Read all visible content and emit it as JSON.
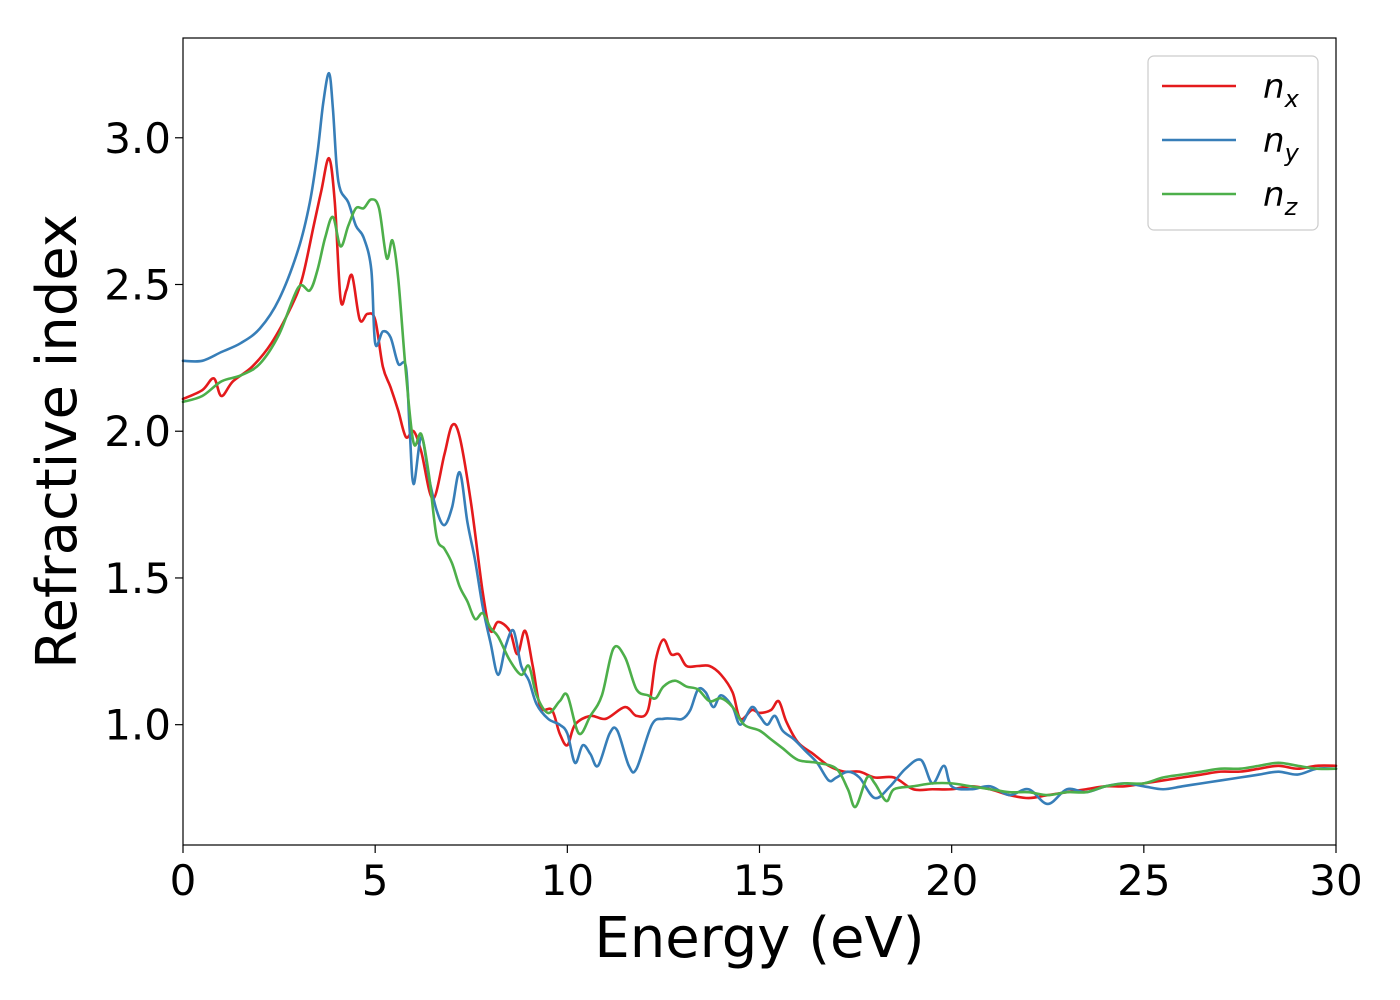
{
  "chart_data": {
    "type": "line",
    "xlabel": "Energy (eV)",
    "ylabel": "Refractive index",
    "xlim": [
      0,
      30
    ],
    "ylim": [
      0.59,
      3.34
    ],
    "xticks": [
      0,
      5,
      10,
      15,
      20,
      25,
      30
    ],
    "xtick_labels": [
      "0",
      "5",
      "10",
      "15",
      "20",
      "25",
      "30"
    ],
    "yticks": [
      1.0,
      1.5,
      2.0,
      2.5,
      3.0
    ],
    "ytick_labels": [
      "1.0",
      "1.5",
      "2.0",
      "2.5",
      "3.0"
    ],
    "grid": false,
    "legend_position": "top-right",
    "series": [
      {
        "name": "x",
        "legend_base": "n",
        "legend_sub": "x",
        "color": "#e41a1c",
        "points": [
          [
            0,
            2.11
          ],
          [
            0.5,
            2.14
          ],
          [
            0.8,
            2.18
          ],
          [
            1.0,
            2.12
          ],
          [
            1.3,
            2.17
          ],
          [
            1.8,
            2.22
          ],
          [
            2.3,
            2.3
          ],
          [
            2.8,
            2.42
          ],
          [
            3.1,
            2.52
          ],
          [
            3.4,
            2.7
          ],
          [
            3.6,
            2.82
          ],
          [
            3.8,
            2.93
          ],
          [
            3.95,
            2.78
          ],
          [
            4.1,
            2.45
          ],
          [
            4.25,
            2.48
          ],
          [
            4.4,
            2.53
          ],
          [
            4.6,
            2.38
          ],
          [
            4.8,
            2.4
          ],
          [
            5.0,
            2.38
          ],
          [
            5.2,
            2.22
          ],
          [
            5.4,
            2.15
          ],
          [
            5.6,
            2.07
          ],
          [
            5.8,
            1.98
          ],
          [
            6.0,
            2.0
          ],
          [
            6.2,
            1.93
          ],
          [
            6.5,
            1.77
          ],
          [
            6.8,
            1.92
          ],
          [
            7.0,
            2.02
          ],
          [
            7.2,
            1.98
          ],
          [
            7.5,
            1.75
          ],
          [
            7.8,
            1.45
          ],
          [
            8.0,
            1.32
          ],
          [
            8.2,
            1.35
          ],
          [
            8.5,
            1.32
          ],
          [
            8.7,
            1.24
          ],
          [
            8.9,
            1.32
          ],
          [
            9.1,
            1.2
          ],
          [
            9.3,
            1.06
          ],
          [
            9.6,
            1.05
          ],
          [
            9.8,
            0.97
          ],
          [
            10.0,
            0.93
          ],
          [
            10.2,
            1.0
          ],
          [
            10.6,
            1.03
          ],
          [
            11.0,
            1.02
          ],
          [
            11.5,
            1.06
          ],
          [
            11.8,
            1.03
          ],
          [
            12.1,
            1.05
          ],
          [
            12.3,
            1.22
          ],
          [
            12.5,
            1.29
          ],
          [
            12.7,
            1.24
          ],
          [
            12.9,
            1.24
          ],
          [
            13.1,
            1.2
          ],
          [
            13.4,
            1.2
          ],
          [
            13.7,
            1.2
          ],
          [
            14.0,
            1.17
          ],
          [
            14.3,
            1.11
          ],
          [
            14.5,
            1.02
          ],
          [
            14.8,
            1.05
          ],
          [
            15.0,
            1.04
          ],
          [
            15.3,
            1.05
          ],
          [
            15.5,
            1.08
          ],
          [
            15.7,
            1.01
          ],
          [
            16.0,
            0.94
          ],
          [
            16.4,
            0.9
          ],
          [
            16.8,
            0.86
          ],
          [
            17.2,
            0.84
          ],
          [
            17.6,
            0.84
          ],
          [
            18.0,
            0.82
          ],
          [
            18.5,
            0.82
          ],
          [
            19.0,
            0.78
          ],
          [
            19.5,
            0.78
          ],
          [
            20.0,
            0.78
          ],
          [
            20.5,
            0.79
          ],
          [
            21.0,
            0.78
          ],
          [
            21.5,
            0.76
          ],
          [
            22.0,
            0.75
          ],
          [
            22.5,
            0.76
          ],
          [
            23.0,
            0.77
          ],
          [
            23.5,
            0.78
          ],
          [
            24.0,
            0.79
          ],
          [
            24.5,
            0.79
          ],
          [
            25.0,
            0.8
          ],
          [
            25.5,
            0.81
          ],
          [
            26.0,
            0.82
          ],
          [
            26.5,
            0.83
          ],
          [
            27.0,
            0.84
          ],
          [
            27.5,
            0.84
          ],
          [
            28.0,
            0.85
          ],
          [
            28.5,
            0.86
          ],
          [
            29.0,
            0.85
          ],
          [
            29.5,
            0.86
          ],
          [
            30.0,
            0.86
          ]
        ]
      },
      {
        "name": "y",
        "legend_base": "n",
        "legend_sub": "y",
        "color": "#377eb8",
        "points": [
          [
            0,
            2.24
          ],
          [
            0.5,
            2.24
          ],
          [
            1.0,
            2.27
          ],
          [
            1.5,
            2.3
          ],
          [
            2.0,
            2.35
          ],
          [
            2.5,
            2.45
          ],
          [
            3.0,
            2.62
          ],
          [
            3.3,
            2.78
          ],
          [
            3.5,
            2.95
          ],
          [
            3.65,
            3.12
          ],
          [
            3.8,
            3.22
          ],
          [
            3.9,
            3.1
          ],
          [
            4.0,
            2.9
          ],
          [
            4.1,
            2.82
          ],
          [
            4.3,
            2.78
          ],
          [
            4.5,
            2.7
          ],
          [
            4.7,
            2.66
          ],
          [
            4.9,
            2.55
          ],
          [
            5.0,
            2.3
          ],
          [
            5.2,
            2.34
          ],
          [
            5.4,
            2.32
          ],
          [
            5.6,
            2.23
          ],
          [
            5.8,
            2.22
          ],
          [
            5.9,
            2.0
          ],
          [
            6.0,
            1.82
          ],
          [
            6.2,
            1.98
          ],
          [
            6.4,
            1.84
          ],
          [
            6.6,
            1.73
          ],
          [
            6.8,
            1.68
          ],
          [
            7.0,
            1.74
          ],
          [
            7.2,
            1.86
          ],
          [
            7.4,
            1.69
          ],
          [
            7.6,
            1.56
          ],
          [
            7.8,
            1.4
          ],
          [
            8.0,
            1.28
          ],
          [
            8.2,
            1.17
          ],
          [
            8.4,
            1.27
          ],
          [
            8.6,
            1.32
          ],
          [
            8.8,
            1.2
          ],
          [
            9.0,
            1.15
          ],
          [
            9.2,
            1.07
          ],
          [
            9.5,
            1.02
          ],
          [
            9.8,
            1.0
          ],
          [
            10.0,
            0.97
          ],
          [
            10.2,
            0.87
          ],
          [
            10.4,
            0.93
          ],
          [
            10.6,
            0.9
          ],
          [
            10.8,
            0.86
          ],
          [
            11.1,
            0.97
          ],
          [
            11.3,
            0.98
          ],
          [
            11.6,
            0.86
          ],
          [
            11.8,
            0.85
          ],
          [
            12.2,
            1.0
          ],
          [
            12.5,
            1.02
          ],
          [
            12.8,
            1.02
          ],
          [
            13.0,
            1.02
          ],
          [
            13.2,
            1.05
          ],
          [
            13.4,
            1.12
          ],
          [
            13.6,
            1.11
          ],
          [
            13.8,
            1.06
          ],
          [
            14.0,
            1.1
          ],
          [
            14.3,
            1.06
          ],
          [
            14.5,
            1.0
          ],
          [
            14.8,
            1.06
          ],
          [
            15.0,
            1.03
          ],
          [
            15.2,
            1.0
          ],
          [
            15.4,
            1.03
          ],
          [
            15.6,
            0.98
          ],
          [
            15.9,
            0.95
          ],
          [
            16.2,
            0.91
          ],
          [
            16.5,
            0.87
          ],
          [
            16.8,
            0.81
          ],
          [
            17.0,
            0.82
          ],
          [
            17.3,
            0.84
          ],
          [
            17.6,
            0.82
          ],
          [
            18.0,
            0.75
          ],
          [
            18.4,
            0.79
          ],
          [
            18.8,
            0.85
          ],
          [
            19.2,
            0.88
          ],
          [
            19.5,
            0.8
          ],
          [
            19.8,
            0.86
          ],
          [
            20.0,
            0.79
          ],
          [
            20.5,
            0.78
          ],
          [
            21.0,
            0.79
          ],
          [
            21.5,
            0.76
          ],
          [
            22.0,
            0.78
          ],
          [
            22.5,
            0.73
          ],
          [
            23.0,
            0.78
          ],
          [
            23.5,
            0.77
          ],
          [
            24.0,
            0.79
          ],
          [
            24.5,
            0.8
          ],
          [
            25.0,
            0.79
          ],
          [
            25.5,
            0.78
          ],
          [
            26.0,
            0.79
          ],
          [
            26.5,
            0.8
          ],
          [
            27.0,
            0.81
          ],
          [
            27.5,
            0.82
          ],
          [
            28.0,
            0.83
          ],
          [
            28.5,
            0.84
          ],
          [
            29.0,
            0.83
          ],
          [
            29.5,
            0.85
          ],
          [
            30.0,
            0.85
          ]
        ]
      },
      {
        "name": "z",
        "legend_base": "n",
        "legend_sub": "z",
        "color": "#4daf4a",
        "points": [
          [
            0,
            2.1
          ],
          [
            0.5,
            2.12
          ],
          [
            1.0,
            2.17
          ],
          [
            1.5,
            2.19
          ],
          [
            2.0,
            2.23
          ],
          [
            2.5,
            2.33
          ],
          [
            3.0,
            2.49
          ],
          [
            3.3,
            2.48
          ],
          [
            3.5,
            2.55
          ],
          [
            3.7,
            2.66
          ],
          [
            3.9,
            2.73
          ],
          [
            4.1,
            2.63
          ],
          [
            4.3,
            2.7
          ],
          [
            4.5,
            2.76
          ],
          [
            4.7,
            2.76
          ],
          [
            4.9,
            2.79
          ],
          [
            5.1,
            2.76
          ],
          [
            5.3,
            2.59
          ],
          [
            5.45,
            2.65
          ],
          [
            5.6,
            2.52
          ],
          [
            5.8,
            2.2
          ],
          [
            6.0,
            1.96
          ],
          [
            6.2,
            1.99
          ],
          [
            6.4,
            1.85
          ],
          [
            6.6,
            1.64
          ],
          [
            6.8,
            1.6
          ],
          [
            7.0,
            1.55
          ],
          [
            7.2,
            1.47
          ],
          [
            7.4,
            1.42
          ],
          [
            7.6,
            1.36
          ],
          [
            7.8,
            1.38
          ],
          [
            8.0,
            1.33
          ],
          [
            8.2,
            1.3
          ],
          [
            8.5,
            1.22
          ],
          [
            8.8,
            1.17
          ],
          [
            9.0,
            1.2
          ],
          [
            9.2,
            1.1
          ],
          [
            9.5,
            1.04
          ],
          [
            9.8,
            1.08
          ],
          [
            10.0,
            1.1
          ],
          [
            10.3,
            0.97
          ],
          [
            10.6,
            1.03
          ],
          [
            10.9,
            1.1
          ],
          [
            11.2,
            1.26
          ],
          [
            11.5,
            1.23
          ],
          [
            11.8,
            1.12
          ],
          [
            12.1,
            1.1
          ],
          [
            12.3,
            1.09
          ],
          [
            12.5,
            1.13
          ],
          [
            12.8,
            1.15
          ],
          [
            13.1,
            1.13
          ],
          [
            13.4,
            1.12
          ],
          [
            13.7,
            1.08
          ],
          [
            14.0,
            1.09
          ],
          [
            14.3,
            1.06
          ],
          [
            14.6,
            1.0
          ],
          [
            15.0,
            0.98
          ],
          [
            15.3,
            0.95
          ],
          [
            15.6,
            0.92
          ],
          [
            16.0,
            0.88
          ],
          [
            16.5,
            0.87
          ],
          [
            17.0,
            0.85
          ],
          [
            17.3,
            0.78
          ],
          [
            17.5,
            0.72
          ],
          [
            17.8,
            0.82
          ],
          [
            18.0,
            0.8
          ],
          [
            18.3,
            0.74
          ],
          [
            18.5,
            0.78
          ],
          [
            19.0,
            0.79
          ],
          [
            19.5,
            0.8
          ],
          [
            20.0,
            0.8
          ],
          [
            20.5,
            0.79
          ],
          [
            21.0,
            0.78
          ],
          [
            21.5,
            0.77
          ],
          [
            22.0,
            0.77
          ],
          [
            22.5,
            0.76
          ],
          [
            23.0,
            0.77
          ],
          [
            23.5,
            0.77
          ],
          [
            24.0,
            0.79
          ],
          [
            24.5,
            0.8
          ],
          [
            25.0,
            0.8
          ],
          [
            25.5,
            0.82
          ],
          [
            26.0,
            0.83
          ],
          [
            26.5,
            0.84
          ],
          [
            27.0,
            0.85
          ],
          [
            27.5,
            0.85
          ],
          [
            28.0,
            0.86
          ],
          [
            28.5,
            0.87
          ],
          [
            29.0,
            0.86
          ],
          [
            29.5,
            0.85
          ],
          [
            30.0,
            0.85
          ]
        ]
      }
    ]
  }
}
